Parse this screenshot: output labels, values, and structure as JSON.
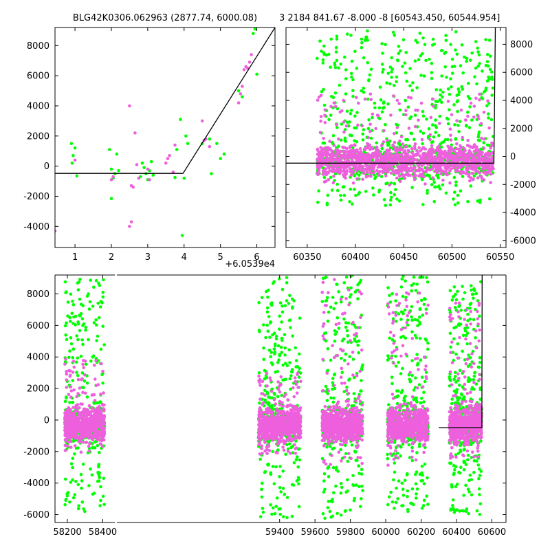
{
  "chart_data": [
    {
      "type": "scatter",
      "title": "BLG42K0306.062963 (2877.74, 6000.08)",
      "x_offset_label": "+6.0539e4",
      "xlim": [
        0.45,
        6.5
      ],
      "ylim": [
        -5400,
        9200
      ],
      "xticks": [
        1,
        2,
        3,
        4,
        5,
        6
      ],
      "yticks": [
        -4000,
        -2000,
        0,
        2000,
        4000,
        6000,
        8000
      ],
      "model_line": [
        [
          0.45,
          -480
        ],
        [
          3.97,
          -480
        ],
        [
          6.5,
          9200
        ]
      ],
      "series": [
        {
          "color": "#00ff00",
          "points": [
            [
              0.9,
              1500
            ],
            [
              0.95,
              700
            ],
            [
              0.92,
              200
            ],
            [
              1.0,
              1200
            ],
            [
              1.05,
              -650
            ],
            [
              1.95,
              1100
            ],
            [
              2.0,
              -200
            ],
            [
              2.0,
              -2150
            ],
            [
              2.05,
              -800
            ],
            [
              2.1,
              -500
            ],
            [
              2.15,
              800
            ],
            [
              2.2,
              -300
            ],
            [
              2.8,
              -700
            ],
            [
              2.85,
              200
            ],
            [
              2.9,
              -100
            ],
            [
              2.95,
              -500
            ],
            [
              3.0,
              -900
            ],
            [
              3.05,
              -300
            ],
            [
              3.1,
              300
            ],
            [
              3.15,
              -600
            ],
            [
              3.75,
              -750
            ],
            [
              3.8,
              1100
            ],
            [
              3.9,
              3100
            ],
            [
              3.95,
              -4600
            ],
            [
              4.0,
              -800
            ],
            [
              4.05,
              2000
            ],
            [
              4.1,
              1500
            ],
            [
              4.5,
              1500
            ],
            [
              4.7,
              1800
            ],
            [
              4.75,
              -500
            ],
            [
              4.9,
              1500
            ],
            [
              5.0,
              500
            ],
            [
              5.1,
              800
            ],
            [
              5.5,
              5000
            ],
            [
              5.6,
              4600
            ],
            [
              5.9,
              8800
            ],
            [
              5.95,
              9100
            ],
            [
              6.0,
              6100
            ]
          ]
        },
        {
          "color": "#ee5fdd",
          "points": [
            [
              0.45,
              -4300
            ],
            [
              1.0,
              400
            ],
            [
              2.0,
              -900
            ],
            [
              2.05,
              -700
            ],
            [
              2.5,
              4000
            ],
            [
              2.55,
              -1300
            ],
            [
              2.6,
              -1400
            ],
            [
              2.65,
              2200
            ],
            [
              2.7,
              100
            ],
            [
              2.75,
              -800
            ],
            [
              2.55,
              -3700
            ],
            [
              2.5,
              -4000
            ],
            [
              3.0,
              -200
            ],
            [
              3.05,
              -900
            ],
            [
              3.5,
              200
            ],
            [
              3.55,
              500
            ],
            [
              3.6,
              700
            ],
            [
              3.7,
              -400
            ],
            [
              3.75,
              1400
            ],
            [
              4.5,
              3000
            ],
            [
              4.55,
              1700
            ],
            [
              4.6,
              1800
            ],
            [
              4.7,
              1300
            ],
            [
              5.5,
              4200
            ],
            [
              5.55,
              4800
            ],
            [
              5.6,
              5300
            ],
            [
              5.65,
              6400
            ],
            [
              5.7,
              6600
            ],
            [
              5.75,
              6500
            ],
            [
              5.8,
              6900
            ],
            [
              5.85,
              7400
            ]
          ]
        }
      ]
    },
    {
      "type": "scatter",
      "title": "3 2184 841.67 -8.000 -8 [60543.450, 60544.954]",
      "xlim": [
        60328,
        60556
      ],
      "ylim": [
        -6500,
        9200
      ],
      "xticks": [
        60350,
        60400,
        60450,
        60500,
        60550
      ],
      "yticks": [
        -6000,
        -4000,
        -2000,
        0,
        2000,
        4000,
        6000,
        8000
      ],
      "model_line": [
        [
          60328,
          -480
        ],
        [
          60543.45,
          -480
        ],
        [
          60544.954,
          9200
        ]
      ],
      "bands": [
        {
          "x": [
            60360,
            60543
          ],
          "green": [
            -3500,
            9000
          ],
          "pink": [
            -2000,
            4500
          ]
        }
      ]
    },
    {
      "type": "scatter",
      "title": "",
      "xlim": [
        58130,
        60680
      ],
      "ylim": [
        -6500,
        9200
      ],
      "xticks": [
        58200,
        58400,
        59400,
        59600,
        59800,
        60000,
        60200,
        60400,
        60600
      ],
      "yticks": [
        -6000,
        -4000,
        -2000,
        0,
        2000,
        4000,
        6000,
        8000
      ],
      "axis_break": [
        58470,
        58480
      ],
      "model_line": [
        [
          60300,
          -480
        ],
        [
          60543.45,
          -480
        ],
        [
          60544.954,
          9200
        ]
      ],
      "bands": [
        {
          "x": [
            58185,
            58410
          ],
          "green": [
            -5800,
            9000
          ],
          "pink": [
            -2000,
            4000
          ]
        },
        {
          "x": [
            59280,
            59520
          ],
          "green": [
            -6200,
            9200
          ],
          "pink": [
            -2200,
            3000
          ]
        },
        {
          "x": [
            59640,
            59870
          ],
          "green": [
            -6400,
            9200
          ],
          "pink": [
            -3000,
            9000
          ]
        },
        {
          "x": [
            60010,
            60240
          ],
          "green": [
            -5800,
            9200
          ],
          "pink": [
            -3000,
            8500
          ]
        },
        {
          "x": [
            60360,
            60543
          ],
          "green": [
            -6000,
            9000
          ],
          "pink": [
            -2500,
            7500
          ]
        }
      ]
    }
  ],
  "colors": {
    "green": "#00ff00",
    "pink": "#ee5fdd",
    "line": "#000000"
  }
}
